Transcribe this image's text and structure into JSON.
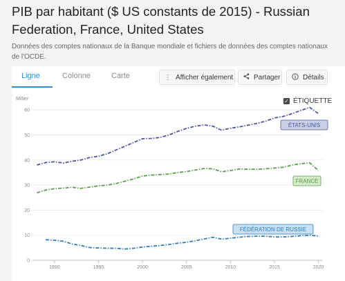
{
  "header": {
    "title": "PIB par habitant ($ US constants de 2015) - Russian Federation, France, United States",
    "subtitle": "Données des comptes nationaux de la Banque mondiale et fichiers de données des comptes nationaux de l'OCDE."
  },
  "tabs": [
    {
      "label": "Ligne",
      "active": true
    },
    {
      "label": "Colonne",
      "active": false
    },
    {
      "label": "Carte",
      "active": false
    }
  ],
  "toolbar": {
    "also_show_label": "Afficher également",
    "share_label": "Partager",
    "details_label": "Détails",
    "also_show_icon": "vertical-dots-icon",
    "share_icon": "share-icon",
    "details_icon": "info-icon"
  },
  "legend_toggle": {
    "label": "ÉTIQUETTE",
    "checked": true
  },
  "chart_data": {
    "type": "line",
    "ylabel": "Millier",
    "ylim": [
      0,
      65
    ],
    "yticks": [
      0,
      10,
      20,
      30,
      40,
      50,
      60
    ],
    "xlim": [
      1987.5,
      2020.5
    ],
    "xticks": [
      1990,
      1995,
      2000,
      2005,
      2010,
      2015,
      2020
    ],
    "series": [
      {
        "name": "ÉTATS-UNIS",
        "color": "#4a569d",
        "label_bg": "#c9cfe6",
        "x": [
          1988,
          1989,
          1990,
          1991,
          1992,
          1993,
          1994,
          1995,
          1996,
          1997,
          1998,
          1999,
          2000,
          2001,
          2002,
          2003,
          2004,
          2005,
          2006,
          2007,
          2008,
          2009,
          2010,
          2011,
          2012,
          2013,
          2014,
          2015,
          2016,
          2017,
          2018,
          2019,
          2020
        ],
        "values": [
          38.0,
          39.0,
          39.3,
          38.8,
          39.5,
          40.0,
          41.0,
          41.5,
          42.5,
          44.0,
          45.5,
          47.0,
          48.5,
          48.6,
          49.0,
          50.0,
          51.4,
          52.6,
          53.5,
          54.0,
          53.5,
          51.9,
          52.7,
          53.2,
          53.9,
          54.6,
          55.5,
          56.8,
          57.4,
          58.5,
          59.8,
          61.0,
          58.5
        ]
      },
      {
        "name": "FRANCE",
        "color": "#5a9e4d",
        "label_bg": "#d3ebc7",
        "x": [
          1988,
          1989,
          1990,
          1991,
          1992,
          1993,
          1994,
          1995,
          1996,
          1997,
          1998,
          1999,
          2000,
          2001,
          2002,
          2003,
          2004,
          2005,
          2006,
          2007,
          2008,
          2009,
          2010,
          2011,
          2012,
          2013,
          2014,
          2015,
          2016,
          2017,
          2018,
          2019,
          2020
        ],
        "values": [
          26.9,
          28.0,
          28.6,
          28.8,
          29.1,
          28.7,
          29.2,
          29.7,
          30.0,
          30.6,
          31.5,
          32.5,
          33.6,
          34.0,
          34.2,
          34.4,
          35.0,
          35.4,
          36.0,
          36.6,
          36.5,
          35.3,
          35.8,
          36.4,
          36.3,
          36.3,
          36.5,
          36.8,
          37.1,
          38.0,
          38.5,
          38.9,
          35.8
        ]
      },
      {
        "name": "FÉDÉRATION DE RUSSIE",
        "color": "#2e7cb8",
        "label_bg": "#c8e0f2",
        "x": [
          1989,
          1990,
          1991,
          1992,
          1993,
          1994,
          1995,
          1996,
          1997,
          1998,
          1999,
          2000,
          2001,
          2002,
          2003,
          2004,
          2005,
          2006,
          2007,
          2008,
          2009,
          2010,
          2011,
          2012,
          2013,
          2014,
          2015,
          2016,
          2017,
          2018,
          2019,
          2020
        ],
        "values": [
          8.2,
          8.0,
          7.6,
          6.5,
          5.9,
          5.1,
          4.9,
          4.8,
          4.8,
          4.5,
          4.8,
          5.3,
          5.6,
          5.9,
          6.3,
          6.8,
          7.2,
          7.8,
          8.5,
          9.2,
          8.4,
          8.8,
          9.2,
          9.5,
          9.6,
          9.6,
          9.3,
          9.3,
          9.5,
          9.8,
          10.0,
          9.7
        ]
      }
    ]
  }
}
